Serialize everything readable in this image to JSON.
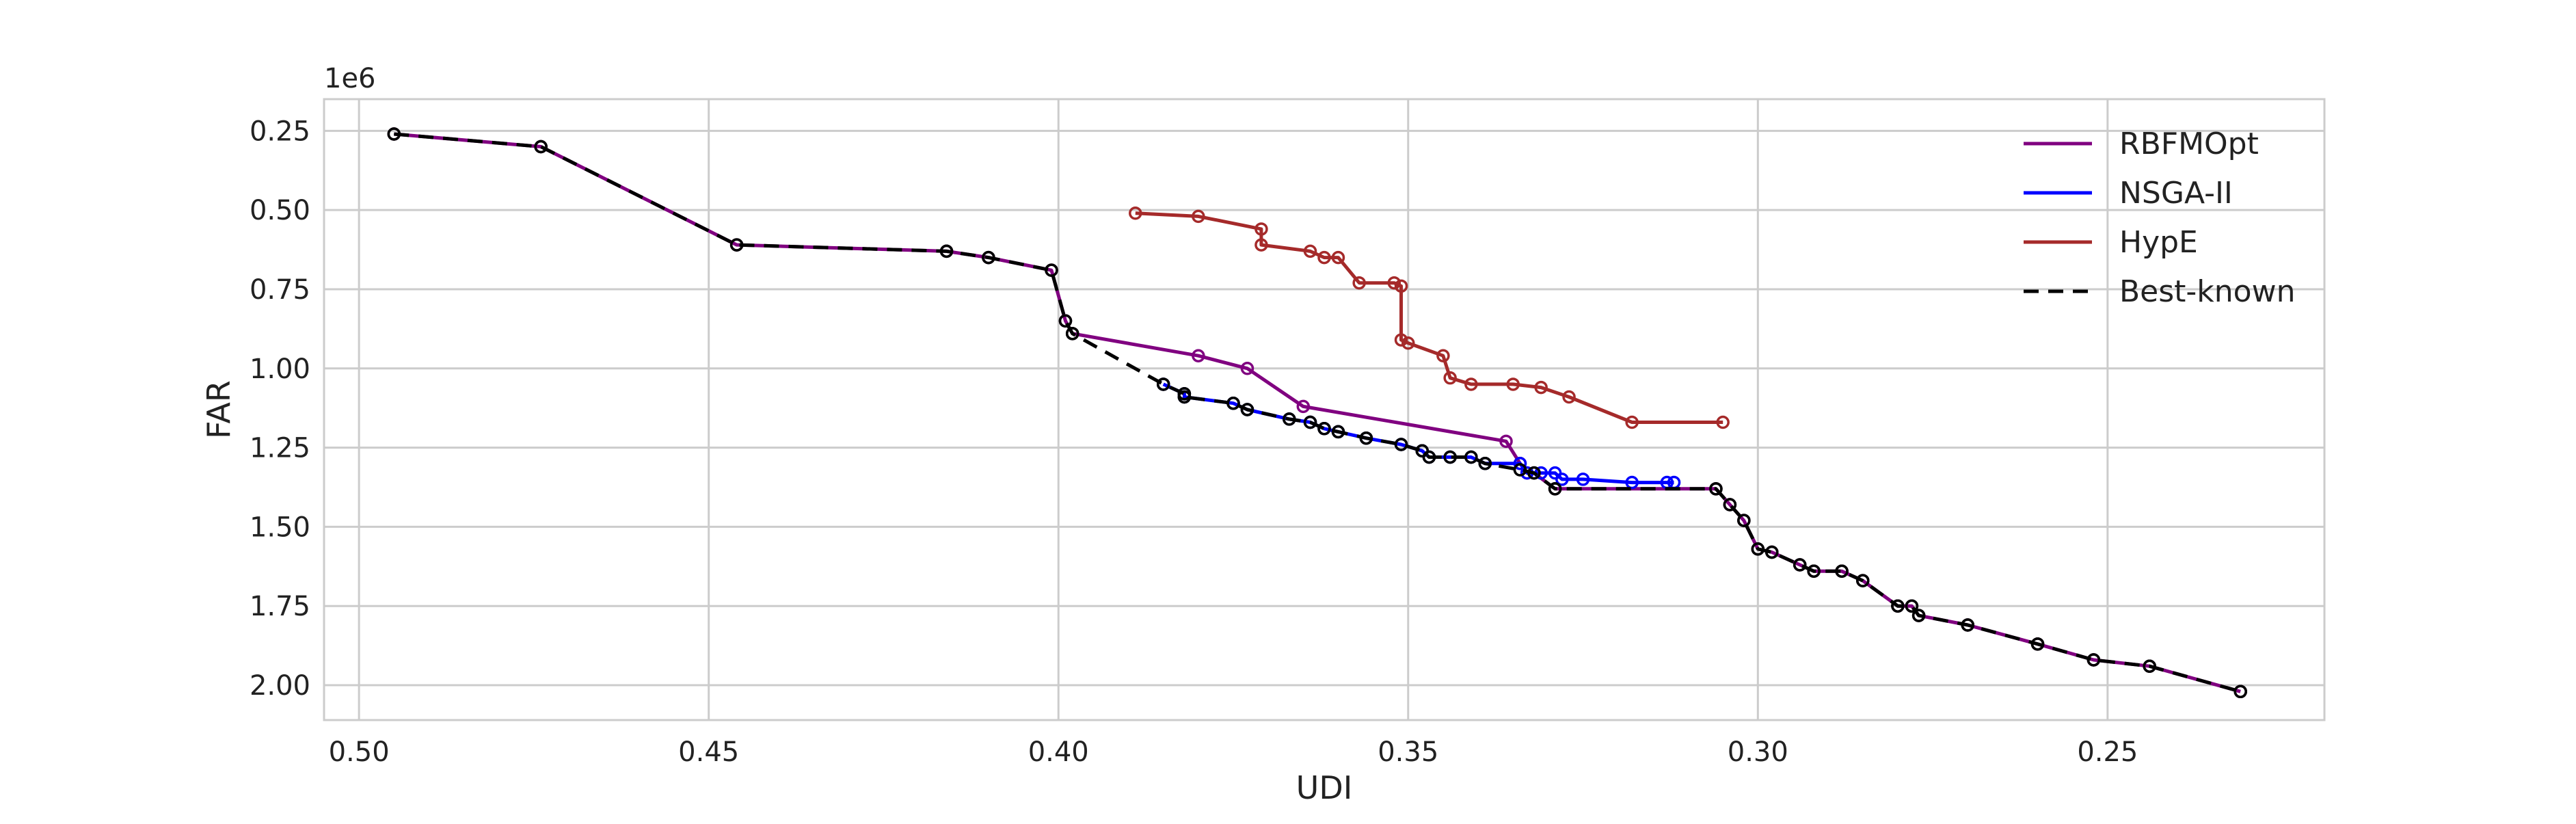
{
  "chart_data": {
    "type": "line",
    "title": "",
    "xlabel": "UDI",
    "ylabel": "FAR",
    "y_offset_label": "1e6",
    "x_axis": {
      "inverted": true,
      "xlim": [
        0.505,
        0.219
      ],
      "ticks": [
        0.5,
        0.45,
        0.4,
        0.35,
        0.3,
        0.25
      ],
      "tick_labels": [
        "0.50",
        "0.45",
        "0.40",
        "0.35",
        "0.30",
        "0.25"
      ]
    },
    "y_axis": {
      "inverted": true,
      "ylim": [
        0.15,
        2.11
      ],
      "ticks": [
        0.25,
        0.5,
        0.75,
        1.0,
        1.25,
        1.5,
        1.75,
        2.0
      ],
      "tick_labels": [
        "0.25",
        "0.50",
        "0.75",
        "1.00",
        "1.25",
        "1.50",
        "1.75",
        "2.00"
      ]
    },
    "grid": true,
    "legend_position": "top-right",
    "series": [
      {
        "name": "RBFMOpt",
        "color": "#800080",
        "style": "solid",
        "marker": "open-circle",
        "points": [
          [
            0.495,
            0.26
          ],
          [
            0.474,
            0.3
          ],
          [
            0.446,
            0.61
          ],
          [
            0.416,
            0.63
          ],
          [
            0.41,
            0.65
          ],
          [
            0.401,
            0.69
          ],
          [
            0.399,
            0.85
          ],
          [
            0.398,
            0.89
          ],
          [
            0.38,
            0.96
          ],
          [
            0.373,
            1.0
          ],
          [
            0.365,
            1.12
          ],
          [
            0.336,
            1.23
          ],
          [
            0.334,
            1.3
          ],
          [
            0.333,
            1.33
          ],
          [
            0.332,
            1.33
          ],
          [
            0.329,
            1.38
          ],
          [
            0.306,
            1.38
          ],
          [
            0.304,
            1.43
          ],
          [
            0.302,
            1.48
          ],
          [
            0.3,
            1.57
          ],
          [
            0.298,
            1.58
          ],
          [
            0.294,
            1.62
          ],
          [
            0.292,
            1.64
          ],
          [
            0.288,
            1.64
          ],
          [
            0.285,
            1.67
          ],
          [
            0.28,
            1.75
          ],
          [
            0.278,
            1.75
          ],
          [
            0.277,
            1.78
          ],
          [
            0.27,
            1.81
          ],
          [
            0.26,
            1.87
          ],
          [
            0.252,
            1.92
          ],
          [
            0.244,
            1.94
          ],
          [
            0.231,
            2.02
          ]
        ]
      },
      {
        "name": "NSGA-II",
        "color": "#0000ff",
        "style": "solid",
        "marker": "open-circle",
        "points": [
          [
            0.385,
            1.05
          ],
          [
            0.382,
            1.08
          ],
          [
            0.382,
            1.09
          ],
          [
            0.375,
            1.11
          ],
          [
            0.373,
            1.13
          ],
          [
            0.367,
            1.16
          ],
          [
            0.364,
            1.17
          ],
          [
            0.362,
            1.19
          ],
          [
            0.36,
            1.2
          ],
          [
            0.356,
            1.22
          ],
          [
            0.351,
            1.24
          ],
          [
            0.348,
            1.26
          ],
          [
            0.347,
            1.28
          ],
          [
            0.344,
            1.28
          ],
          [
            0.341,
            1.28
          ],
          [
            0.339,
            1.3
          ],
          [
            0.334,
            1.3
          ],
          [
            0.333,
            1.33
          ],
          [
            0.331,
            1.33
          ],
          [
            0.329,
            1.33
          ],
          [
            0.328,
            1.35
          ],
          [
            0.325,
            1.35
          ],
          [
            0.318,
            1.36
          ],
          [
            0.313,
            1.36
          ],
          [
            0.312,
            1.36
          ]
        ]
      },
      {
        "name": "HypE",
        "color": "#a52a2a",
        "style": "solid",
        "marker": "open-circle",
        "points": [
          [
            0.389,
            0.51
          ],
          [
            0.38,
            0.52
          ],
          [
            0.371,
            0.56
          ],
          [
            0.371,
            0.61
          ],
          [
            0.364,
            0.63
          ],
          [
            0.362,
            0.65
          ],
          [
            0.36,
            0.65
          ],
          [
            0.357,
            0.73
          ],
          [
            0.352,
            0.73
          ],
          [
            0.351,
            0.74
          ],
          [
            0.351,
            0.91
          ],
          [
            0.35,
            0.92
          ],
          [
            0.345,
            0.96
          ],
          [
            0.344,
            1.03
          ],
          [
            0.341,
            1.05
          ],
          [
            0.335,
            1.05
          ],
          [
            0.331,
            1.06
          ],
          [
            0.327,
            1.09
          ],
          [
            0.318,
            1.17
          ],
          [
            0.305,
            1.17
          ]
        ]
      },
      {
        "name": "Best-known",
        "color": "#000000",
        "style": "dashed",
        "marker": "open-circle",
        "points": [
          [
            0.495,
            0.26
          ],
          [
            0.474,
            0.3
          ],
          [
            0.446,
            0.61
          ],
          [
            0.416,
            0.63
          ],
          [
            0.41,
            0.65
          ],
          [
            0.401,
            0.69
          ],
          [
            0.399,
            0.85
          ],
          [
            0.398,
            0.89
          ],
          [
            0.385,
            1.05
          ],
          [
            0.382,
            1.08
          ],
          [
            0.382,
            1.09
          ],
          [
            0.375,
            1.11
          ],
          [
            0.373,
            1.13
          ],
          [
            0.367,
            1.16
          ],
          [
            0.364,
            1.17
          ],
          [
            0.362,
            1.19
          ],
          [
            0.36,
            1.2
          ],
          [
            0.356,
            1.22
          ],
          [
            0.351,
            1.24
          ],
          [
            0.348,
            1.26
          ],
          [
            0.347,
            1.28
          ],
          [
            0.344,
            1.28
          ],
          [
            0.341,
            1.28
          ],
          [
            0.339,
            1.3
          ],
          [
            0.334,
            1.32
          ],
          [
            0.332,
            1.33
          ],
          [
            0.329,
            1.38
          ],
          [
            0.306,
            1.38
          ],
          [
            0.304,
            1.43
          ],
          [
            0.302,
            1.48
          ],
          [
            0.3,
            1.57
          ],
          [
            0.298,
            1.58
          ],
          [
            0.294,
            1.62
          ],
          [
            0.292,
            1.64
          ],
          [
            0.288,
            1.64
          ],
          [
            0.285,
            1.67
          ],
          [
            0.28,
            1.75
          ],
          [
            0.278,
            1.75
          ],
          [
            0.277,
            1.78
          ],
          [
            0.27,
            1.81
          ],
          [
            0.26,
            1.87
          ],
          [
            0.252,
            1.92
          ],
          [
            0.244,
            1.94
          ],
          [
            0.231,
            2.02
          ]
        ]
      }
    ]
  }
}
